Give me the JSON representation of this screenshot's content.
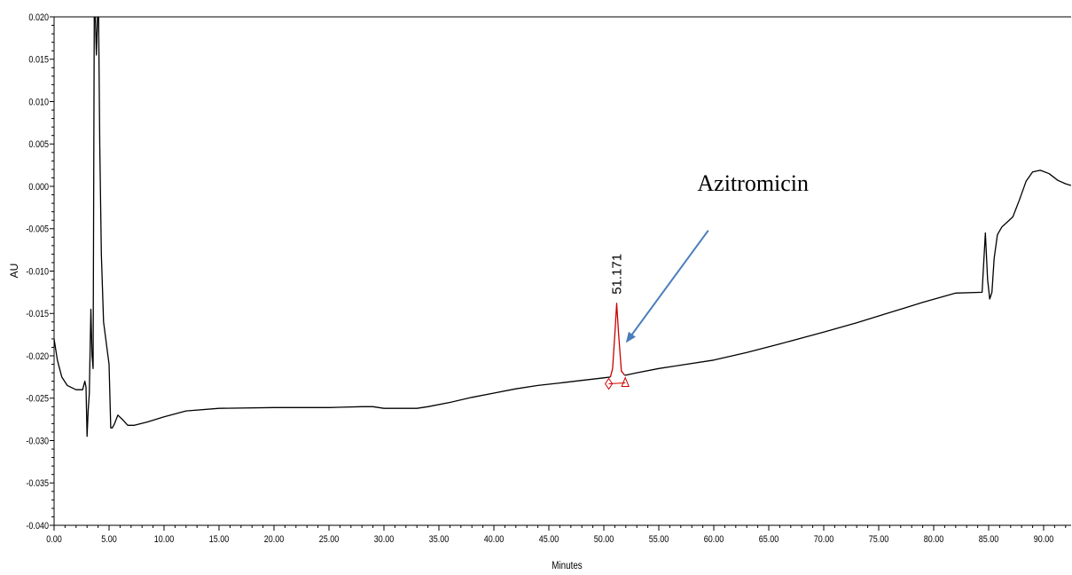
{
  "chart_data": {
    "type": "line",
    "title": "",
    "xlabel": "Minutes",
    "ylabel": "AU",
    "xlim": [
      0,
      92.5
    ],
    "ylim": [
      -0.04,
      0.02
    ],
    "x_ticks": [
      "0.00",
      "5.00",
      "10.00",
      "15.00",
      "20.00",
      "25.00",
      "30.00",
      "35.00",
      "40.00",
      "45.00",
      "50.00",
      "55.00",
      "60.00",
      "65.00",
      "70.00",
      "75.00",
      "80.00",
      "85.00",
      "90.00"
    ],
    "y_ticks": [
      "0.020",
      "0.015",
      "0.010",
      "0.005",
      "0.000",
      "-0.005",
      "-0.010",
      "-0.015",
      "-0.020",
      "-0.025",
      "-0.030",
      "-0.035",
      "-0.040"
    ],
    "grid": false,
    "series": [
      {
        "color": "#000000",
        "x": [
          0.0,
          0.3,
          0.7,
          1.2,
          2.0,
          2.6,
          2.8,
          2.9,
          3.0,
          3.1,
          3.2,
          3.35,
          3.45,
          3.55,
          3.65,
          3.75,
          3.85,
          3.95,
          4.05,
          4.15,
          4.3,
          4.5,
          4.8,
          5.0,
          5.15,
          5.3,
          5.5,
          5.8,
          6.2,
          6.7,
          7.3,
          8.5,
          10.0,
          12.0,
          15.0,
          20.0,
          25.0,
          28.0,
          29.0,
          30.0,
          33.0,
          34.0,
          36.0,
          38.0,
          40.0,
          42.0,
          44.0,
          46.0,
          48.0,
          50.0,
          50.6
        ],
        "y": [
          -0.018,
          -0.0205,
          -0.0225,
          -0.0235,
          -0.024,
          -0.024,
          -0.023,
          -0.0237,
          -0.0295,
          -0.0265,
          -0.0245,
          -0.0145,
          -0.02,
          -0.0215,
          0.02,
          0.02,
          0.0155,
          0.02,
          0.02,
          0.005,
          -0.008,
          -0.016,
          -0.019,
          -0.021,
          -0.0285,
          -0.0285,
          -0.028,
          -0.027,
          -0.0275,
          -0.0282,
          -0.0282,
          -0.0278,
          -0.0272,
          -0.0265,
          -0.0262,
          -0.0261,
          -0.0261,
          -0.026,
          -0.026,
          -0.0262,
          -0.0262,
          -0.026,
          -0.0255,
          -0.0249,
          -0.0244,
          -0.0239,
          -0.0235,
          -0.0232,
          -0.0229,
          -0.0226,
          -0.0225
        ]
      },
      {
        "color": "#cc0000",
        "x": [
          50.6,
          50.8,
          51.0,
          51.171,
          51.35,
          51.6,
          51.9
        ],
        "y": [
          -0.0225,
          -0.0215,
          -0.0175,
          -0.0138,
          -0.0175,
          -0.0218,
          -0.0223
        ]
      },
      {
        "color": "#000000",
        "x": [
          51.9,
          53.0,
          55.0,
          57.0,
          60.0,
          63.0,
          66.0,
          70.0,
          73.0,
          76.0,
          79.0,
          82.0,
          84.4,
          84.7,
          84.9,
          85.1,
          85.3,
          85.5,
          85.8,
          86.2,
          86.7,
          87.2,
          87.8,
          88.4,
          89.0,
          89.7,
          90.5,
          91.3,
          92.0,
          92.5
        ],
        "y": [
          -0.0223,
          -0.022,
          -0.0215,
          -0.0211,
          -0.0205,
          -0.0196,
          -0.0186,
          -0.0172,
          -0.0161,
          -0.0149,
          -0.0137,
          -0.0126,
          -0.0125,
          -0.0055,
          -0.011,
          -0.0133,
          -0.0125,
          -0.0085,
          -0.0057,
          -0.0048,
          -0.0042,
          -0.0036,
          -0.0016,
          0.0006,
          0.0017,
          0.0019,
          0.0015,
          0.0007,
          0.0003,
          0.0001
        ]
      }
    ],
    "peaks": [
      {
        "label": "51.171",
        "x": 51.171,
        "y": -0.0138,
        "start_x": 50.45,
        "start_y": -0.0233,
        "end_x": 51.95,
        "end_y": -0.0232
      }
    ],
    "annotation": {
      "text": "Azitromicin",
      "arrow_from_x": 59.5,
      "arrow_from_y": -0.0052,
      "arrow_to_x": 52.1,
      "arrow_to_y": -0.0183,
      "text_x": 58.5,
      "text_y": -0.0005
    }
  },
  "colors": {
    "trace": "#000000",
    "peak": "#cc0000",
    "arrow": "#4a7ebb"
  }
}
